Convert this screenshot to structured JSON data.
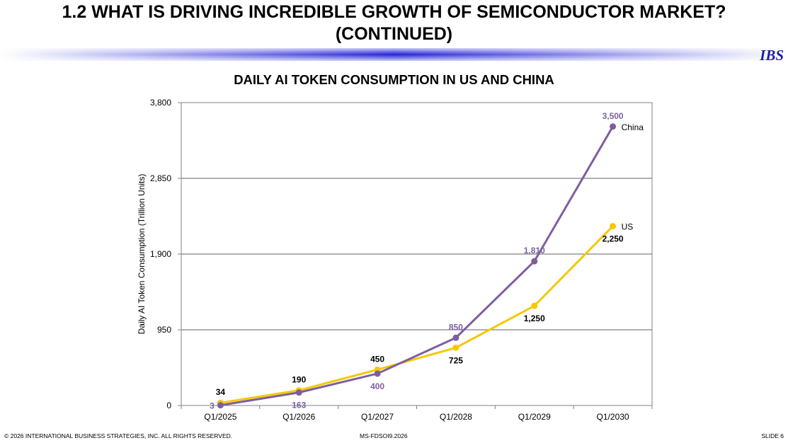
{
  "slide": {
    "title_line1": "1.2  WHAT IS DRIVING INCREDIBLE GROWTH OF SEMICONDUCTOR MARKET?",
    "title_line2": "(CONTINUED)",
    "logo": "IBS",
    "footer_left": "© 2026 INTERNATIONAL BUSINESS STRATEGIES, INC. ALL RIGHTS RESERVED.",
    "footer_center": "MS-FDSOI9.2026",
    "footer_right": "SLIDE 6"
  },
  "chart_data": {
    "type": "line",
    "title": "DAILY AI TOKEN CONSUMPTION IN US AND CHINA",
    "ylabel": "Daily AI Token Consumption (Trillion Units)",
    "xlabel": "",
    "categories": [
      "Q1/2025",
      "Q1/2026",
      "Q1/2027",
      "Q1/2028",
      "Q1/2029",
      "Q1/2030"
    ],
    "ylim": [
      0,
      3800
    ],
    "yticks": [
      0,
      950,
      1900,
      2850,
      3800
    ],
    "ytick_labels": [
      "0",
      "950",
      "1,900",
      "2,850",
      "3,800"
    ],
    "grid": true,
    "series": [
      {
        "name": "US",
        "color": "#f5c800",
        "values": [
          34,
          190,
          450,
          725,
          1250,
          2250
        ],
        "labels": [
          "34",
          "190",
          "450",
          "725",
          "1,250",
          "2,250"
        ],
        "label_color": "#000000"
      },
      {
        "name": "China",
        "color": "#7d5ea0",
        "values": [
          3,
          163,
          400,
          850,
          1810,
          3500
        ],
        "labels": [
          "3",
          "163",
          "400",
          "850",
          "1,810",
          "3,500"
        ],
        "label_color": "#7d5ea0"
      }
    ]
  }
}
